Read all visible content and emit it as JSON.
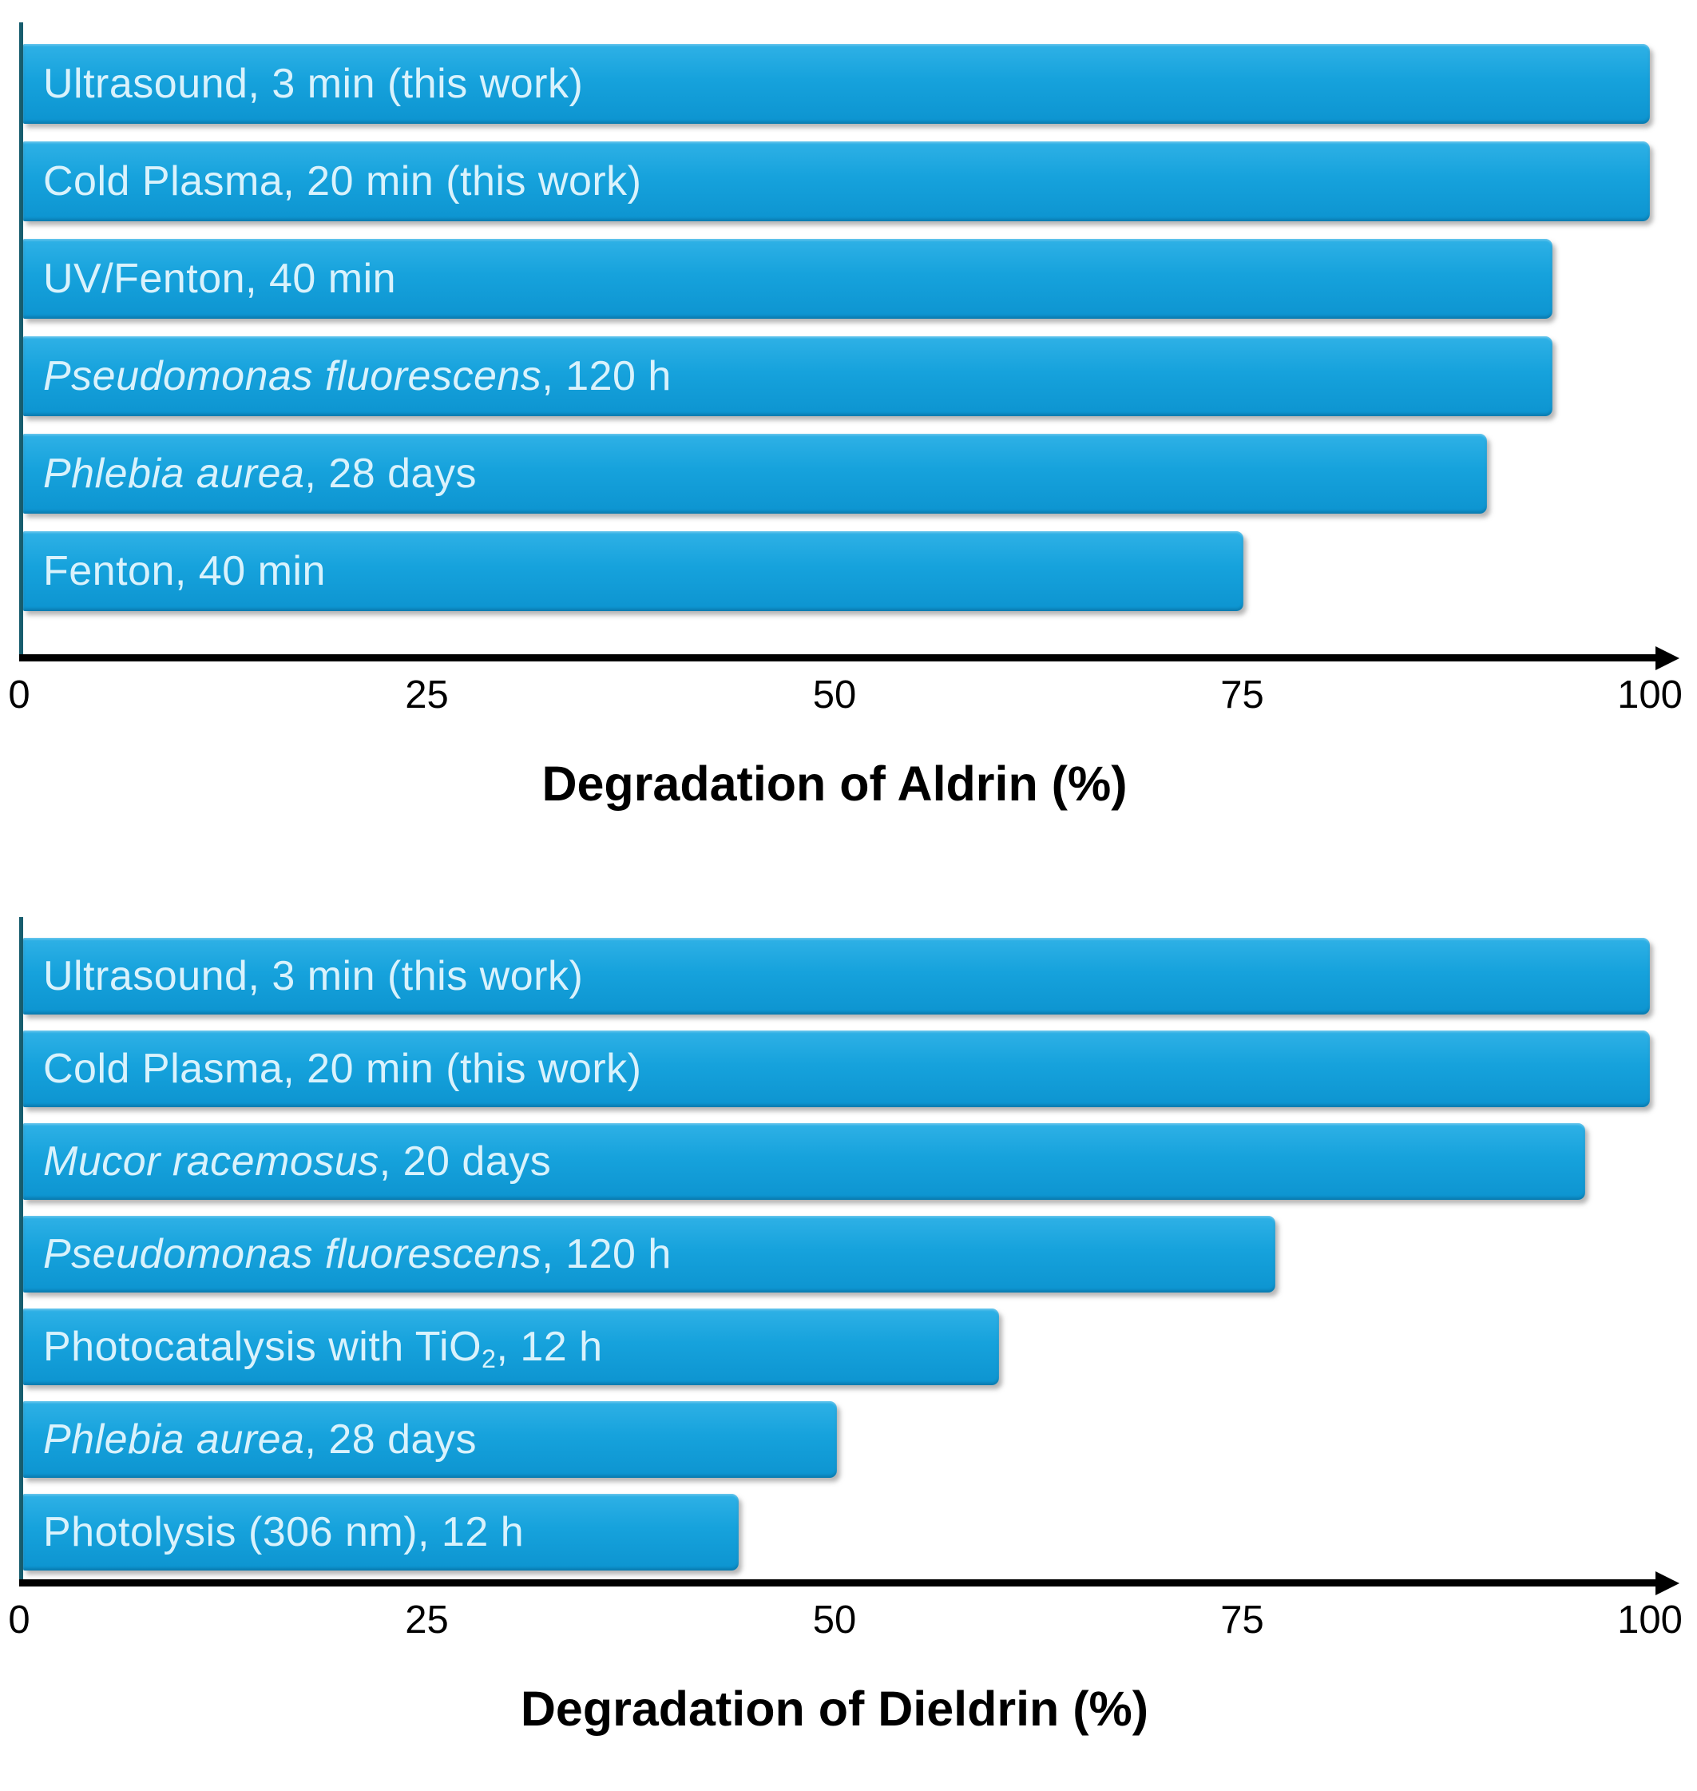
{
  "style": {
    "bar_gradient_top": "#2fb1e6",
    "bar_gradient_mid": "#16a2dc",
    "bar_gradient_bottom": "#0d94d0",
    "bar_text_color": "#d9f2fc",
    "y_axis_color": "#175d6e",
    "x_axis_color": "#000000",
    "text_color": "#000000",
    "background_color": "#ffffff"
  },
  "chart_data": [
    {
      "type": "bar",
      "orientation": "horizontal",
      "title": "Degradation of Aldrin (%)",
      "xlabel": "Degradation of Aldrin (%)",
      "ylabel": "",
      "xlim": [
        0,
        100
      ],
      "ticks": [
        0,
        25,
        50,
        75,
        100
      ],
      "grid": false,
      "legend": false,
      "bars": [
        {
          "value": 100,
          "label_text": "Ultrasound, 3 min (this work)",
          "label_parts": [
            {
              "text": "Ultrasound, 3 min (this work)",
              "style": "normal"
            }
          ]
        },
        {
          "value": 100,
          "label_text": "Cold Plasma, 20 min (this work)",
          "label_parts": [
            {
              "text": "Cold Plasma, 20 min (this work)",
              "style": "normal"
            }
          ]
        },
        {
          "value": 94,
          "label_text": "UV/Fenton, 40 min",
          "label_parts": [
            {
              "text": "UV/Fenton, 40 min",
              "style": "normal"
            }
          ]
        },
        {
          "value": 94,
          "label_text": "Pseudomonas fluorescens, 120 h",
          "label_parts": [
            {
              "text": "Pseudomonas fluorescens",
              "style": "italic"
            },
            {
              "text": ", 120 h",
              "style": "normal"
            }
          ]
        },
        {
          "value": 90,
          "label_text": "Phlebia aurea, 28 days",
          "label_parts": [
            {
              "text": "Phlebia aurea",
              "style": "italic"
            },
            {
              "text": ", 28 days",
              "style": "normal"
            }
          ]
        },
        {
          "value": 75,
          "label_text": "Fenton, 40 min",
          "label_parts": [
            {
              "text": "Fenton, 40 min",
              "style": "normal"
            }
          ]
        }
      ]
    },
    {
      "type": "bar",
      "orientation": "horizontal",
      "title": "Degradation of Dieldrin (%)",
      "xlabel": "Degradation of Dieldrin (%)",
      "ylabel": "",
      "xlim": [
        0,
        100
      ],
      "ticks": [
        0,
        25,
        50,
        75,
        100
      ],
      "grid": false,
      "legend": false,
      "bars": [
        {
          "value": 100,
          "label_text": "Ultrasound, 3 min (this work)",
          "label_parts": [
            {
              "text": "Ultrasound, 3 min (this work)",
              "style": "normal"
            }
          ]
        },
        {
          "value": 100,
          "label_text": "Cold Plasma, 20 min (this work)",
          "label_parts": [
            {
              "text": "Cold Plasma, 20 min (this work)",
              "style": "normal"
            }
          ]
        },
        {
          "value": 96,
          "label_text": "Mucor racemosus, 20 days",
          "label_parts": [
            {
              "text": "Mucor racemosus",
              "style": "italic"
            },
            {
              "text": ", 20 days",
              "style": "normal"
            }
          ]
        },
        {
          "value": 77,
          "label_text": "Pseudomonas fluorescens, 120 h",
          "label_parts": [
            {
              "text": "Pseudomonas fluorescens",
              "style": "italic"
            },
            {
              "text": ", 120 h",
              "style": "normal"
            }
          ]
        },
        {
          "value": 60,
          "label_text": "Photocatalysis with TiO2, 12 h",
          "label_parts": [
            {
              "text": "Photocatalysis with TiO",
              "style": "normal"
            },
            {
              "text": "2",
              "style": "sub"
            },
            {
              "text": ", 12 h",
              "style": "normal"
            }
          ]
        },
        {
          "value": 50,
          "label_text": "Phlebia aurea, 28 days",
          "label_parts": [
            {
              "text": "Phlebia aurea",
              "style": "italic"
            },
            {
              "text": ", 28 days",
              "style": "normal"
            }
          ]
        },
        {
          "value": 44,
          "label_text": "Photolysis (306 nm), 12 h",
          "label_parts": [
            {
              "text": "Photolysis (306 nm), 12 h",
              "style": "normal"
            }
          ]
        }
      ]
    }
  ]
}
